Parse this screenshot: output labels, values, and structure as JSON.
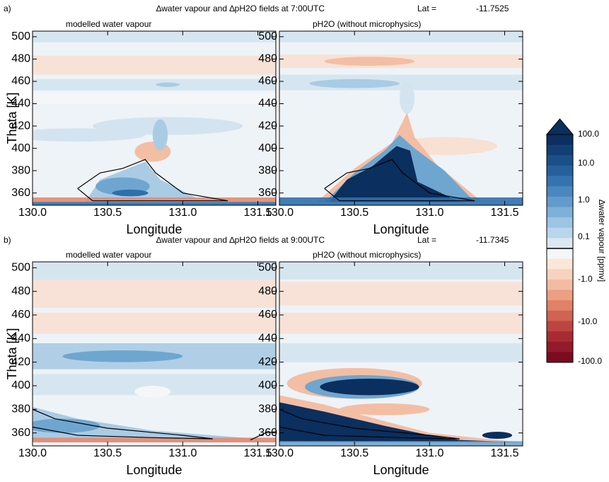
{
  "panels": [
    {
      "label": "a)",
      "title": "∆water vapour and ∆pH2O fields at 7:00UTC",
      "lat_label": "Lat =",
      "lat": "-11.7525",
      "subplots": [
        {
          "title": "modelled water vapour"
        },
        {
          "title": "pH2O (without microphysics)"
        }
      ]
    },
    {
      "label": "b)",
      "title": "∆water vapour and ∆pH2O fields at 9:00UTC",
      "lat_label": "Lat =",
      "lat": "-11.7345",
      "subplots": [
        {
          "title": "modelled water vapour"
        },
        {
          "title": "pH2O (without microphysics)"
        }
      ]
    }
  ],
  "axes": {
    "ylabel": "Theta [K]",
    "xlabel": "Longitude",
    "xlim": [
      130,
      131.62
    ],
    "ylim": [
      349,
      505
    ],
    "xticks": [
      {
        "value": 130,
        "label": "130.0"
      },
      {
        "value": 130.5,
        "label": "130.5"
      },
      {
        "value": 131,
        "label": "131.0"
      },
      {
        "value": 131.5,
        "label": "131.5"
      }
    ],
    "yticks": [
      360,
      380,
      400,
      420,
      440,
      460,
      480,
      500
    ]
  },
  "colorbar": {
    "label": "∆water vapour [ppmv]",
    "ticks": [
      "100.0",
      "10.0",
      "1.0",
      "0.1",
      "-1.0",
      "-10.0",
      "-100.0"
    ]
  }
}
